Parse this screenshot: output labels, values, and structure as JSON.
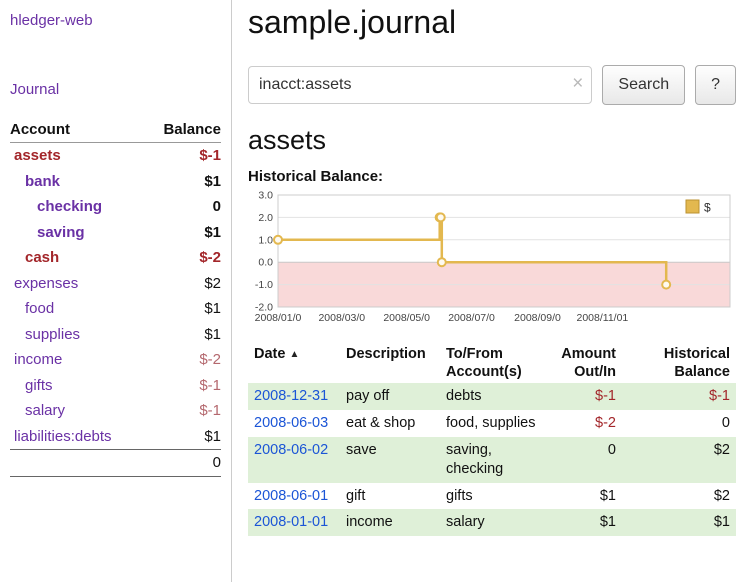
{
  "colors": {
    "link_purple": "#6a31a5",
    "negative_red": "#a3262a",
    "negative_faint": "#b4686e",
    "date_link_blue": "#1b55d6",
    "row_green": "#dff0d8",
    "chart_line": "#e3b84f",
    "chart_negative_area": "#f9d9d9"
  },
  "sidebar": {
    "brand": "hledger-web",
    "journal_link": "Journal",
    "accounts": {
      "col_account": "Account",
      "col_balance": "Balance",
      "rows": [
        {
          "name": "assets",
          "balance": "$-1",
          "indent": 0,
          "bold": true,
          "neg": true,
          "neg_balance": true,
          "faint": false
        },
        {
          "name": "bank",
          "balance": "$1",
          "indent": 1,
          "bold": true,
          "neg": false,
          "neg_balance": false,
          "faint": false
        },
        {
          "name": "checking",
          "balance": "0",
          "indent": 2,
          "bold": true,
          "neg": false,
          "neg_balance": false,
          "faint": false
        },
        {
          "name": "saving",
          "balance": "$1",
          "indent": 2,
          "bold": true,
          "neg": false,
          "neg_balance": false,
          "faint": false
        },
        {
          "name": "cash",
          "balance": "$-2",
          "indent": 1,
          "bold": true,
          "neg": true,
          "neg_balance": true,
          "faint": false
        },
        {
          "name": "expenses",
          "balance": "$2",
          "indent": 0,
          "bold": false,
          "neg": false,
          "neg_balance": false,
          "faint": false
        },
        {
          "name": "food",
          "balance": "$1",
          "indent": 1,
          "bold": false,
          "neg": false,
          "neg_balance": false,
          "faint": false
        },
        {
          "name": "supplies",
          "balance": "$1",
          "indent": 1,
          "bold": false,
          "neg": false,
          "neg_balance": false,
          "faint": false
        },
        {
          "name": "income",
          "balance": "$-2",
          "indent": 0,
          "bold": false,
          "neg": false,
          "neg_balance": true,
          "faint": true
        },
        {
          "name": "gifts",
          "balance": "$-1",
          "indent": 1,
          "bold": false,
          "neg": false,
          "neg_balance": true,
          "faint": true
        },
        {
          "name": "salary",
          "balance": "$-1",
          "indent": 1,
          "bold": false,
          "neg": false,
          "neg_balance": true,
          "faint": true
        },
        {
          "name": "liabilities:debts",
          "balance": "$1",
          "indent": 0,
          "bold": false,
          "neg": false,
          "neg_balance": false,
          "faint": false
        }
      ],
      "total": "0"
    }
  },
  "main": {
    "title": "sample.journal",
    "search": {
      "value": "inacct:assets",
      "clear_icon": "×",
      "button_label": "Search",
      "help_label": "?"
    },
    "account_heading": "assets",
    "chart_label": "Historical Balance:",
    "register": {
      "headers": {
        "date": "Date",
        "sort_icon": "▲",
        "description": "Description",
        "accounts": "To/From Account(s)",
        "amount": "Amount Out/In",
        "balance": "Historical Balance"
      },
      "rows": [
        {
          "date": "2008-12-31",
          "description": "pay off",
          "accounts": "debts",
          "amount": "$-1",
          "balance": "$-1"
        },
        {
          "date": "2008-06-03",
          "description": "eat & shop",
          "accounts": "food, supplies",
          "amount": "$-2",
          "balance": "0"
        },
        {
          "date": "2008-06-02",
          "description": "save",
          "accounts": "saving, checking",
          "amount": "0",
          "balance": "$2"
        },
        {
          "date": "2008-06-01",
          "description": "gift",
          "accounts": "gifts",
          "amount": "$1",
          "balance": "$2"
        },
        {
          "date": "2008-01-01",
          "description": "income",
          "accounts": "salary",
          "amount": "$1",
          "balance": "$1"
        }
      ]
    }
  },
  "chart_data": {
    "type": "line",
    "step": true,
    "title": "Historical Balance",
    "ylim": [
      -2,
      3
    ],
    "y_ticks": [
      3,
      2,
      1,
      0,
      -1,
      -2
    ],
    "xlim": [
      "2008-01-01",
      "2009-03-01"
    ],
    "x_ticks": [
      {
        "date": "2008-01-01",
        "label": "2008/01/0"
      },
      {
        "date": "2008-03-01",
        "label": "2008/03/0"
      },
      {
        "date": "2008-05-01",
        "label": "2008/05/0"
      },
      {
        "date": "2008-07-01",
        "label": "2008/07/0"
      },
      {
        "date": "2008-09-01",
        "label": "2008/09/0"
      },
      {
        "date": "2008-11-01",
        "label": "2008/11/01"
      }
    ],
    "legend": {
      "label": "$",
      "position": "top-right"
    },
    "series": [
      {
        "name": "$",
        "points": [
          {
            "date": "2008-01-01",
            "value": 1
          },
          {
            "date": "2008-06-01",
            "value": 2
          },
          {
            "date": "2008-06-02",
            "value": 2
          },
          {
            "date": "2008-06-03",
            "value": 0
          },
          {
            "date": "2008-12-31",
            "value": -1
          }
        ]
      }
    ]
  }
}
